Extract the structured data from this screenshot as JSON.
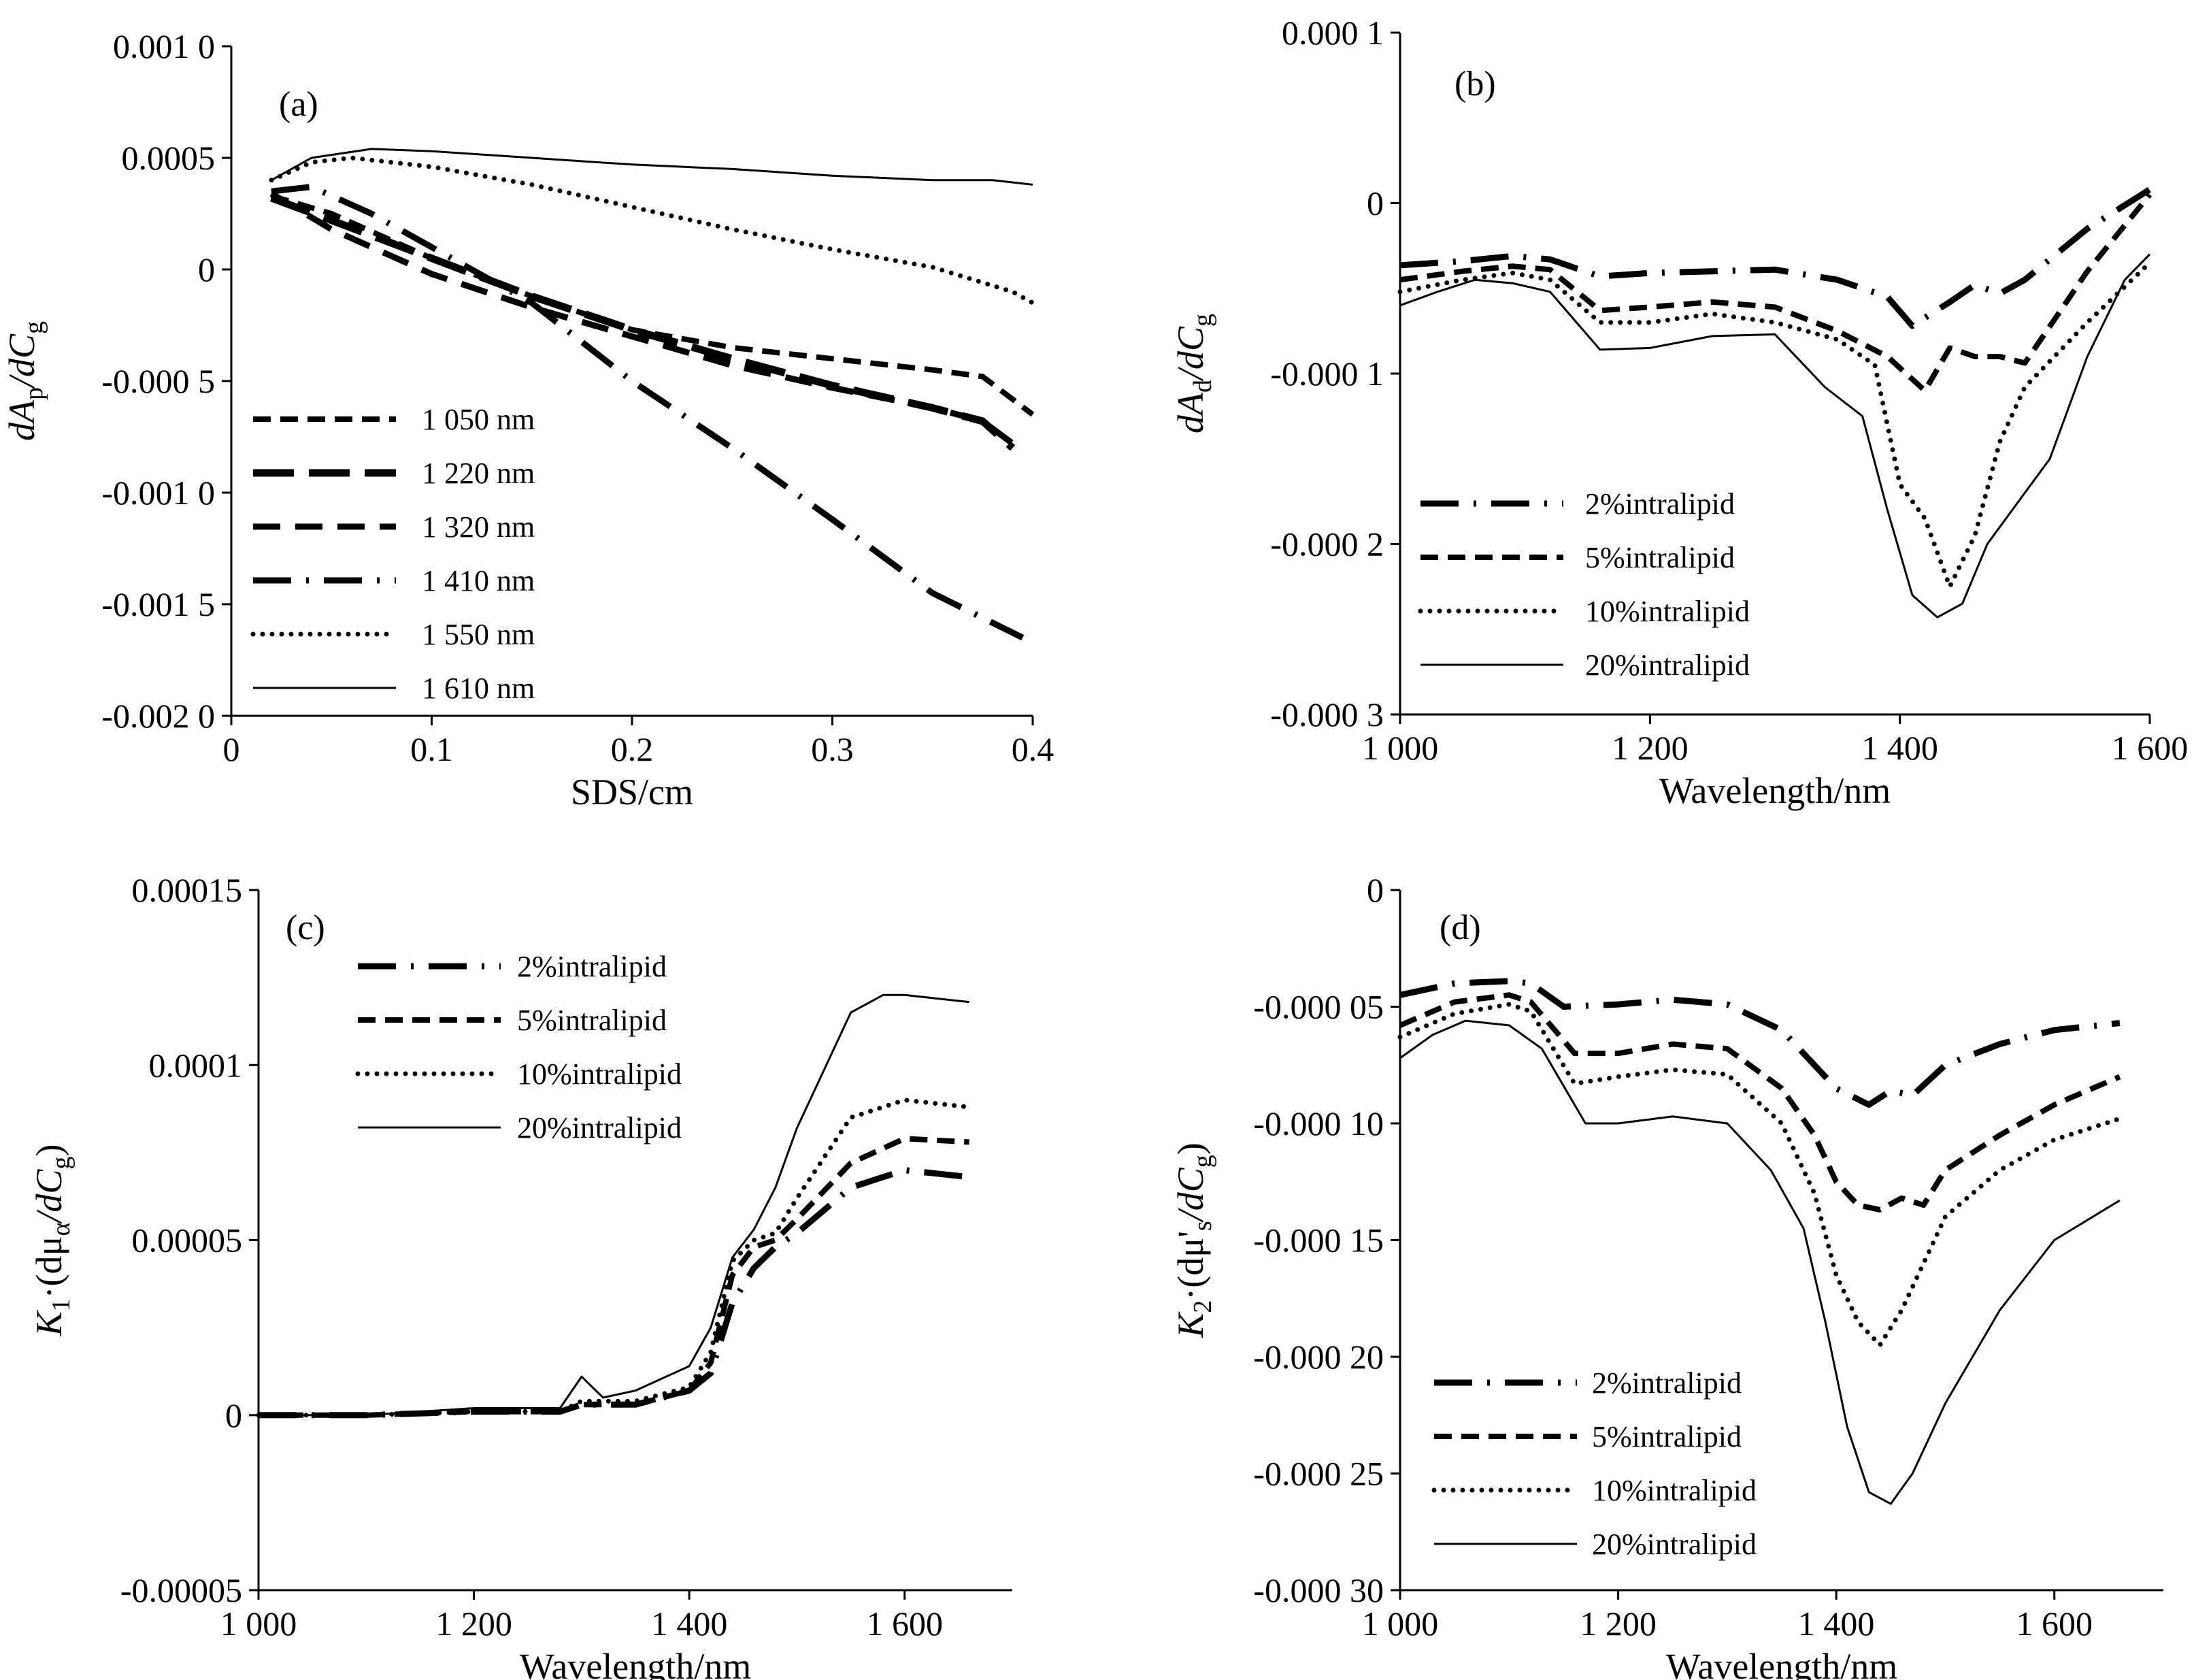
{
  "chart_data": [
    {
      "panel": "(a)",
      "type": "line",
      "xlabel": "SDS/cm",
      "ylabel": "dA_p/dC_g",
      "ylabel_parts": [
        "dA",
        "p",
        "/dC",
        "g"
      ],
      "xlim": [
        0,
        0.4
      ],
      "ylim": [
        -0.002,
        0.001
      ],
      "xticks": [
        0,
        0.1,
        0.2,
        0.3,
        0.4
      ],
      "xtick_labels": [
        "0",
        "0.1",
        "0.2",
        "0.3",
        "0.4"
      ],
      "yticks": [
        0.001,
        0.0005,
        0,
        -0.0005,
        -0.001,
        -0.0015,
        -0.002
      ],
      "ytick_labels": [
        "0.001 0",
        "0.0005",
        "0",
        "-0.000 5",
        "-0.001 0",
        "-0.001 5",
        "-0.002 0"
      ],
      "legend_position": "bottom-left",
      "series": [
        {
          "name": "1 050 nm",
          "style": "dash",
          "x": [
            0.02,
            0.05,
            0.1,
            0.15,
            0.2,
            0.25,
            0.3,
            0.35,
            0.375,
            0.4
          ],
          "y": [
            0.00033,
            0.00025,
            5e-05,
            -0.00012,
            -0.00027,
            -0.00035,
            -0.0004,
            -0.00045,
            -0.00048,
            -0.00065
          ]
        },
        {
          "name": "1 220 nm",
          "style": "longdash",
          "x": [
            0.02,
            0.05,
            0.1,
            0.15,
            0.2,
            0.25,
            0.3,
            0.35,
            0.375,
            0.39
          ],
          "y": [
            0.00032,
            0.00022,
            5e-05,
            -0.00012,
            -0.00027,
            -0.0004,
            -0.00052,
            -0.00062,
            -0.00068,
            -0.0008
          ]
        },
        {
          "name": "1 320 nm",
          "style": "dash2",
          "x": [
            0.02,
            0.05,
            0.1,
            0.15,
            0.2,
            0.25,
            0.3,
            0.35,
            0.375,
            0.39
          ],
          "y": [
            0.00034,
            0.00018,
            -2e-05,
            -0.00017,
            -0.0003,
            -0.00043,
            -0.00053,
            -0.00062,
            -0.00068,
            -0.00078
          ]
        },
        {
          "name": "1 410 nm",
          "style": "dashdot",
          "x": [
            0.02,
            0.04,
            0.07,
            0.1,
            0.15,
            0.2,
            0.25,
            0.3,
            0.35,
            0.395
          ],
          "y": [
            0.00035,
            0.00037,
            0.00025,
            0.0001,
            -0.00015,
            -0.0005,
            -0.0008,
            -0.00112,
            -0.00145,
            -0.00165
          ]
        },
        {
          "name": "1 550 nm",
          "style": "dot",
          "x": [
            0.02,
            0.04,
            0.06,
            0.1,
            0.15,
            0.2,
            0.25,
            0.3,
            0.35,
            0.39,
            0.4
          ],
          "y": [
            0.0004,
            0.00048,
            0.0005,
            0.00046,
            0.00038,
            0.00028,
            0.00018,
            9e-05,
            1e-05,
            -0.0001,
            -0.00015
          ]
        },
        {
          "name": "1 610 nm",
          "style": "solid",
          "x": [
            0.02,
            0.04,
            0.07,
            0.1,
            0.15,
            0.2,
            0.25,
            0.3,
            0.35,
            0.38,
            0.4
          ],
          "y": [
            0.0004,
            0.0005,
            0.00054,
            0.00053,
            0.0005,
            0.00047,
            0.00045,
            0.00042,
            0.0004,
            0.0004,
            0.00038
          ]
        }
      ]
    },
    {
      "panel": "(b)",
      "type": "line",
      "xlabel": "Wavelength/nm",
      "ylabel": "dA_d/dC_g",
      "ylabel_parts": [
        "dA",
        "d",
        "/dC",
        "g"
      ],
      "xlim": [
        1000,
        1600
      ],
      "ylim": [
        -0.0003,
        0.0001
      ],
      "xticks": [
        1000,
        1200,
        1400,
        1600
      ],
      "xtick_labels": [
        "1 000",
        "1 200",
        "1 400",
        "1 600"
      ],
      "yticks": [
        0.0001,
        0,
        -0.0001,
        -0.0002,
        -0.0003
      ],
      "ytick_labels": [
        "0.000 1",
        "0",
        "-0.000 1",
        "-0.000 2",
        "-0.000 3"
      ],
      "legend_position": "bottom-left",
      "series": [
        {
          "name": "2%intralipid",
          "style": "dashdot",
          "x": [
            1000,
            1050,
            1090,
            1120,
            1160,
            1200,
            1250,
            1300,
            1350,
            1390,
            1410,
            1440,
            1460,
            1480,
            1500,
            1550,
            1600
          ],
          "y": [
            -3.65e-05,
            -3.4e-05,
            -3.1e-05,
            -3.3e-05,
            -4.3e-05,
            -4.1e-05,
            -4e-05,
            -3.9e-05,
            -4.5e-05,
            -5.5e-05,
            -7.2e-05,
            -5.8e-05,
            -4.8e-05,
            -5.3e-05,
            -4.5e-05,
            -1.5e-05,
            8e-06
          ]
        },
        {
          "name": "5%intralipid",
          "style": "dash",
          "x": [
            1000,
            1050,
            1090,
            1120,
            1160,
            1200,
            1250,
            1300,
            1350,
            1390,
            1420,
            1440,
            1460,
            1480,
            1500,
            1550,
            1600
          ],
          "y": [
            -4.5e-05,
            -4e-05,
            -3.7e-05,
            -3.9e-05,
            -6.3e-05,
            -6.1e-05,
            -5.8e-05,
            -6.1e-05,
            -7.5e-05,
            -9e-05,
            -0.00011,
            -8.5e-05,
            -9e-05,
            -9e-05,
            -9.38e-05,
            -4e-05,
            5e-06
          ]
        },
        {
          "name": "10%intralipid",
          "style": "dot",
          "x": [
            1000,
            1050,
            1090,
            1120,
            1160,
            1200,
            1250,
            1300,
            1350,
            1380,
            1400,
            1420,
            1440,
            1460,
            1480,
            1500,
            1550,
            1600
          ],
          "y": [
            -5.2e-05,
            -4.5e-05,
            -4.1e-05,
            -4.5e-05,
            -7e-05,
            -7e-05,
            -6.5e-05,
            -7e-05,
            -8e-05,
            -9.5e-05,
            -0.000165,
            -0.000185,
            -0.000225,
            -0.000195,
            -0.00014,
            -0.000108,
            -7e-05,
            -3.5e-05
          ]
        },
        {
          "name": "20%intralipid",
          "style": "solid",
          "x": [
            1000,
            1030,
            1060,
            1090,
            1120,
            1160,
            1200,
            1250,
            1300,
            1340,
            1370,
            1390,
            1410,
            1430,
            1450,
            1470,
            1500,
            1520,
            1550,
            1580,
            1600
          ],
          "y": [
            -6e-05,
            -5.2e-05,
            -4.5e-05,
            -4.7e-05,
            -5.2e-05,
            -8.6e-05,
            -8.5e-05,
            -7.8e-05,
            -7.7e-05,
            -0.000108,
            -0.000125,
            -0.00018,
            -0.00023,
            -0.000243,
            -0.000235,
            -0.0002,
            -0.00017,
            -0.00015,
            -9e-05,
            -4.5e-05,
            -3e-05
          ]
        }
      ]
    },
    {
      "panel": "(c)",
      "type": "line",
      "xlabel": "Wavelength/nm",
      "ylabel": "K1·(dμα/dCg)",
      "ylabel_parts": [
        "K",
        "1",
        "·(dμ",
        "α",
        "/dC",
        "g",
        ")"
      ],
      "xlim": [
        1000,
        1700
      ],
      "ylim": [
        -5e-05,
        0.00015
      ],
      "xticks": [
        1000,
        1200,
        1400,
        1600
      ],
      "xtick_labels": [
        "1 000",
        "1 200",
        "1 400",
        "1 600"
      ],
      "yticks": [
        0.00015,
        0.0001,
        5e-05,
        0,
        -5e-05
      ],
      "ytick_labels": [
        "0.00015",
        "0.0001",
        "0.00005",
        "0",
        "-0.00005"
      ],
      "legend_position": "top-left",
      "series": [
        {
          "name": "2%intralipid",
          "style": "dashdot",
          "x": [
            1000,
            1100,
            1200,
            1280,
            1300,
            1350,
            1400,
            1420,
            1440,
            1460,
            1480,
            1500,
            1550,
            1600,
            1660
          ],
          "y": [
            0,
            0,
            1e-06,
            1e-06,
            3e-06,
            3e-06,
            7e-06,
            1.2e-05,
            3.2e-05,
            4.2e-05,
            4.8e-05,
            5.2e-05,
            6.5e-05,
            7e-05,
            6.8e-05
          ]
        },
        {
          "name": "5%intralipid",
          "style": "dash",
          "x": [
            1000,
            1100,
            1200,
            1280,
            1300,
            1350,
            1400,
            1420,
            1440,
            1460,
            1480,
            1500,
            1550,
            1600,
            1660
          ],
          "y": [
            0,
            0,
            1e-06,
            1e-06,
            3e-06,
            3e-06,
            7e-06,
            1.5e-05,
            4e-05,
            4.8e-05,
            5e-05,
            5.6e-05,
            7.2e-05,
            7.9e-05,
            7.8e-05
          ]
        },
        {
          "name": "10%intralipid",
          "style": "dot",
          "x": [
            1000,
            1100,
            1200,
            1280,
            1300,
            1350,
            1400,
            1420,
            1440,
            1460,
            1480,
            1500,
            1550,
            1600,
            1660
          ],
          "y": [
            0,
            0,
            1e-06,
            1e-06,
            4e-06,
            4e-06,
            8e-06,
            1.8e-05,
            4.4e-05,
            5e-05,
            5.2e-05,
            6.2e-05,
            8.5e-05,
            9e-05,
            8.8e-05
          ]
        },
        {
          "name": "20%intralipid",
          "style": "solid",
          "x": [
            1000,
            1100,
            1200,
            1280,
            1300,
            1320,
            1350,
            1400,
            1420,
            1440,
            1460,
            1480,
            1500,
            1550,
            1580,
            1600,
            1660
          ],
          "y": [
            0,
            0,
            2e-06,
            2e-06,
            1.1e-05,
            5e-06,
            7e-06,
            1.4e-05,
            2.5e-05,
            4.5e-05,
            5.3e-05,
            6.5e-05,
            8.2e-05,
            0.000115,
            0.00012,
            0.00012,
            0.000118
          ]
        }
      ]
    },
    {
      "panel": "(d)",
      "type": "line",
      "xlabel": "Wavelength/nm",
      "ylabel": "K2·(dμ's/dCg)",
      "ylabel_parts": [
        "K",
        "2",
        "·(dμ'",
        "s",
        "/dC",
        "g",
        ")"
      ],
      "xlim": [
        1000,
        1700
      ],
      "ylim": [
        -0.0003,
        0
      ],
      "xticks": [
        1000,
        1200,
        1400,
        1600
      ],
      "xtick_labels": [
        "1 000",
        "1 200",
        "1 400",
        "1 600"
      ],
      "yticks": [
        0,
        -5e-05,
        -0.0001,
        -0.00015,
        -0.0002,
        -0.00025,
        -0.0003
      ],
      "ytick_labels": [
        "0",
        "-0.000 05",
        "-0.000 10",
        "-0.000 15",
        "-0.000 20",
        "-0.000 25",
        "-0.000 30"
      ],
      "legend_position": "bottom-left",
      "series": [
        {
          "name": "2%intralipid",
          "style": "dashdot",
          "x": [
            1000,
            1050,
            1100,
            1120,
            1150,
            1200,
            1250,
            1300,
            1350,
            1400,
            1430,
            1450,
            1470,
            1500,
            1550,
            1600,
            1660
          ],
          "y": [
            -4.5e-05,
            -4e-05,
            -3.9e-05,
            -4e-05,
            -5e-05,
            -4.9e-05,
            -4.7e-05,
            -4.9e-05,
            -6e-05,
            -8.5e-05,
            -9.2e-05,
            -8.6e-05,
            -8.8e-05,
            -7.5e-05,
            -6.6e-05,
            -6e-05,
            -5.7e-05
          ]
        },
        {
          "name": "5%intralipid",
          "style": "dash",
          "x": [
            1000,
            1050,
            1100,
            1120,
            1160,
            1200,
            1250,
            1300,
            1350,
            1380,
            1400,
            1420,
            1440,
            1460,
            1480,
            1500,
            1550,
            1600,
            1660
          ],
          "y": [
            -5.8e-05,
            -4.8e-05,
            -4.5e-05,
            -4.8e-05,
            -7e-05,
            -7e-05,
            -6.6e-05,
            -6.8e-05,
            -8.5e-05,
            -0.000105,
            -0.000125,
            -0.000135,
            -0.000137,
            -0.000132,
            -0.000135,
            -0.00012,
            -0.000105,
            -9.2e-05,
            -8e-05
          ]
        },
        {
          "name": "10%intralipid",
          "style": "dot",
          "x": [
            1000,
            1050,
            1100,
            1120,
            1160,
            1200,
            1250,
            1300,
            1350,
            1380,
            1400,
            1420,
            1440,
            1460,
            1480,
            1500,
            1550,
            1600,
            1660
          ],
          "y": [
            -6.3e-05,
            -5.3e-05,
            -4.9e-05,
            -5.2e-05,
            -8.3e-05,
            -8e-05,
            -7.7e-05,
            -7.9e-05,
            -0.0001,
            -0.00013,
            -0.000165,
            -0.000185,
            -0.000195,
            -0.00018,
            -0.00016,
            -0.00014,
            -0.00012,
            -0.000107,
            -9.8e-05
          ]
        },
        {
          "name": "20%intralipid",
          "style": "solid",
          "x": [
            1000,
            1030,
            1060,
            1100,
            1130,
            1170,
            1200,
            1250,
            1300,
            1340,
            1370,
            1390,
            1410,
            1430,
            1450,
            1470,
            1500,
            1550,
            1600,
            1660
          ],
          "y": [
            -7.2e-05,
            -6.2e-05,
            -5.6e-05,
            -5.8e-05,
            -6.8e-05,
            -0.0001,
            -0.0001,
            -9.7e-05,
            -0.0001,
            -0.00012,
            -0.000145,
            -0.000185,
            -0.00023,
            -0.000258,
            -0.000263,
            -0.00025,
            -0.00022,
            -0.00018,
            -0.00015,
            -0.000133
          ]
        }
      ]
    }
  ]
}
